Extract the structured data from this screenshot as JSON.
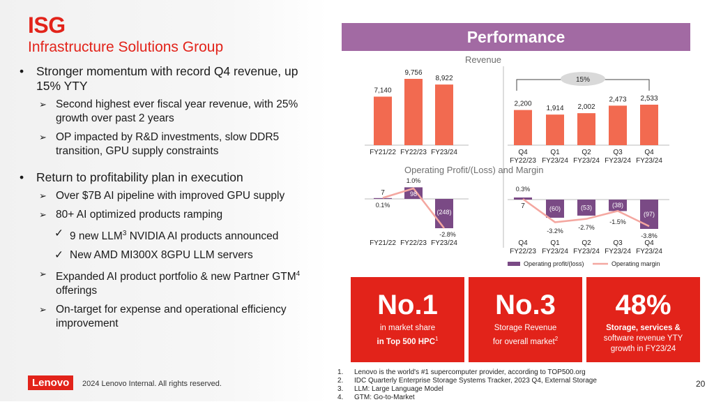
{
  "header": {
    "title": "ISG",
    "subtitle": "Infrastructure Solutions Group"
  },
  "bullets": {
    "b1": "Stronger momentum with record Q4 revenue, up 15% YTY",
    "b1_1": "Second highest ever fiscal year revenue, with 25% growth over past 2 years",
    "b1_2": "OP impacted by R&D investments, slow DDR5 transition, GPU supply constraints",
    "b2": "Return to profitability plan in execution",
    "b2_1": "Over $7B AI pipeline with improved GPU supply",
    "b2_2": "80+ AI optimized products ramping",
    "b2_2_1a": "9 new LLM",
    "b2_2_1sup": "3",
    "b2_2_1b": " NVIDIA AI products announced",
    "b2_2_2": "New AMD MI300X 8GPU LLM servers",
    "b2_3a": "Expanded AI product portfolio & new Partner GTM",
    "b2_3sup": "4",
    "b2_3b": " offerings",
    "b2_4": "On-target for expense and operational efficiency improvement"
  },
  "footer": {
    "logo": "Lenovo",
    "copyright": "2024 Lenovo Internal. All rights reserved.",
    "page": "20"
  },
  "performance": {
    "banner": "Performance",
    "revenue_label": "Revenue",
    "op_label": "Operating Profit/(Loss) and Margin",
    "growth_badge": "15%"
  },
  "legend": {
    "bar": "Operating profit/(loss)",
    "line": "Operating margin"
  },
  "colors": {
    "red": "#e2231a",
    "coral": "#f26a50",
    "purple": "#7a4a85",
    "pink": "#f4a7a0",
    "banner": "#a26aa3"
  },
  "chart_data": [
    {
      "type": "bar",
      "title": "Revenue",
      "categories": [
        "FY21/22",
        "FY22/23",
        "FY23/24"
      ],
      "values": [
        7140,
        9756,
        8922
      ],
      "labels": [
        "7,140",
        "9,756",
        "8,922"
      ]
    },
    {
      "type": "bar",
      "title": "Revenue",
      "categories": [
        "Q4\nFY22/23",
        "Q1\nFY23/24",
        "Q2\nFY23/24",
        "Q3\nFY23/24",
        "Q4\nFY23/24"
      ],
      "values": [
        2200,
        1914,
        2002,
        2473,
        2533
      ],
      "labels": [
        "2,200",
        "1,914",
        "2,002",
        "2,473",
        "2,533"
      ]
    },
    {
      "type": "bar",
      "title": "Operating Profit/(Loss) and Margin",
      "categories": [
        "FY21/22",
        "FY22/23",
        "FY23/24"
      ],
      "series": [
        {
          "name": "Operating profit/(loss)",
          "values": [
            7,
            98,
            -248
          ],
          "labels": [
            "7",
            "98",
            "(248)"
          ]
        },
        {
          "name": "Operating margin",
          "values": [
            0.1,
            1.0,
            -2.8
          ],
          "labels": [
            "0.1%",
            "1.0%",
            "-2.8%"
          ]
        }
      ]
    },
    {
      "type": "bar",
      "title": "Operating Profit/(Loss) and Margin",
      "categories": [
        "Q4\nFY22/23",
        "Q1\nFY23/24",
        "Q2\nFY23/24",
        "Q3\nFY23/24",
        "Q4\nFY23/24"
      ],
      "series": [
        {
          "name": "Operating profit/(loss)",
          "values": [
            7,
            -60,
            -53,
            -38,
            -97
          ],
          "labels": [
            "7",
            "(60)",
            "(53)",
            "(38)",
            "(97)"
          ]
        },
        {
          "name": "Operating margin",
          "values": [
            0.3,
            -3.2,
            -2.7,
            -1.5,
            -3.8
          ],
          "labels": [
            "0.3%",
            "-3.2%",
            "-2.7%",
            "-1.5%",
            "-3.8%"
          ]
        }
      ]
    }
  ],
  "tiles": [
    {
      "big": "No.1",
      "line1": "in market share",
      "line2": "in Top 500 HPC",
      "sup": "1"
    },
    {
      "big": "No.3",
      "line1": "Storage Revenue",
      "line2": "for overall market",
      "sup": "2"
    },
    {
      "big": "48%",
      "line1": "Storage, services &",
      "line2": "software revenue YTY",
      "line3": "growth in FY23/24"
    }
  ],
  "footnotes": [
    {
      "n": "1.",
      "text": "Lenovo is the world's #1 supercomputer provider, according to TOP500.org"
    },
    {
      "n": "2.",
      "text": "IDC Quarterly Enterprise Storage Systems Tracker, 2023 Q4, External Storage"
    },
    {
      "n": "3.",
      "text": "LLM: Large Language Model"
    },
    {
      "n": "4.",
      "text": "GTM: Go-to-Market"
    }
  ]
}
